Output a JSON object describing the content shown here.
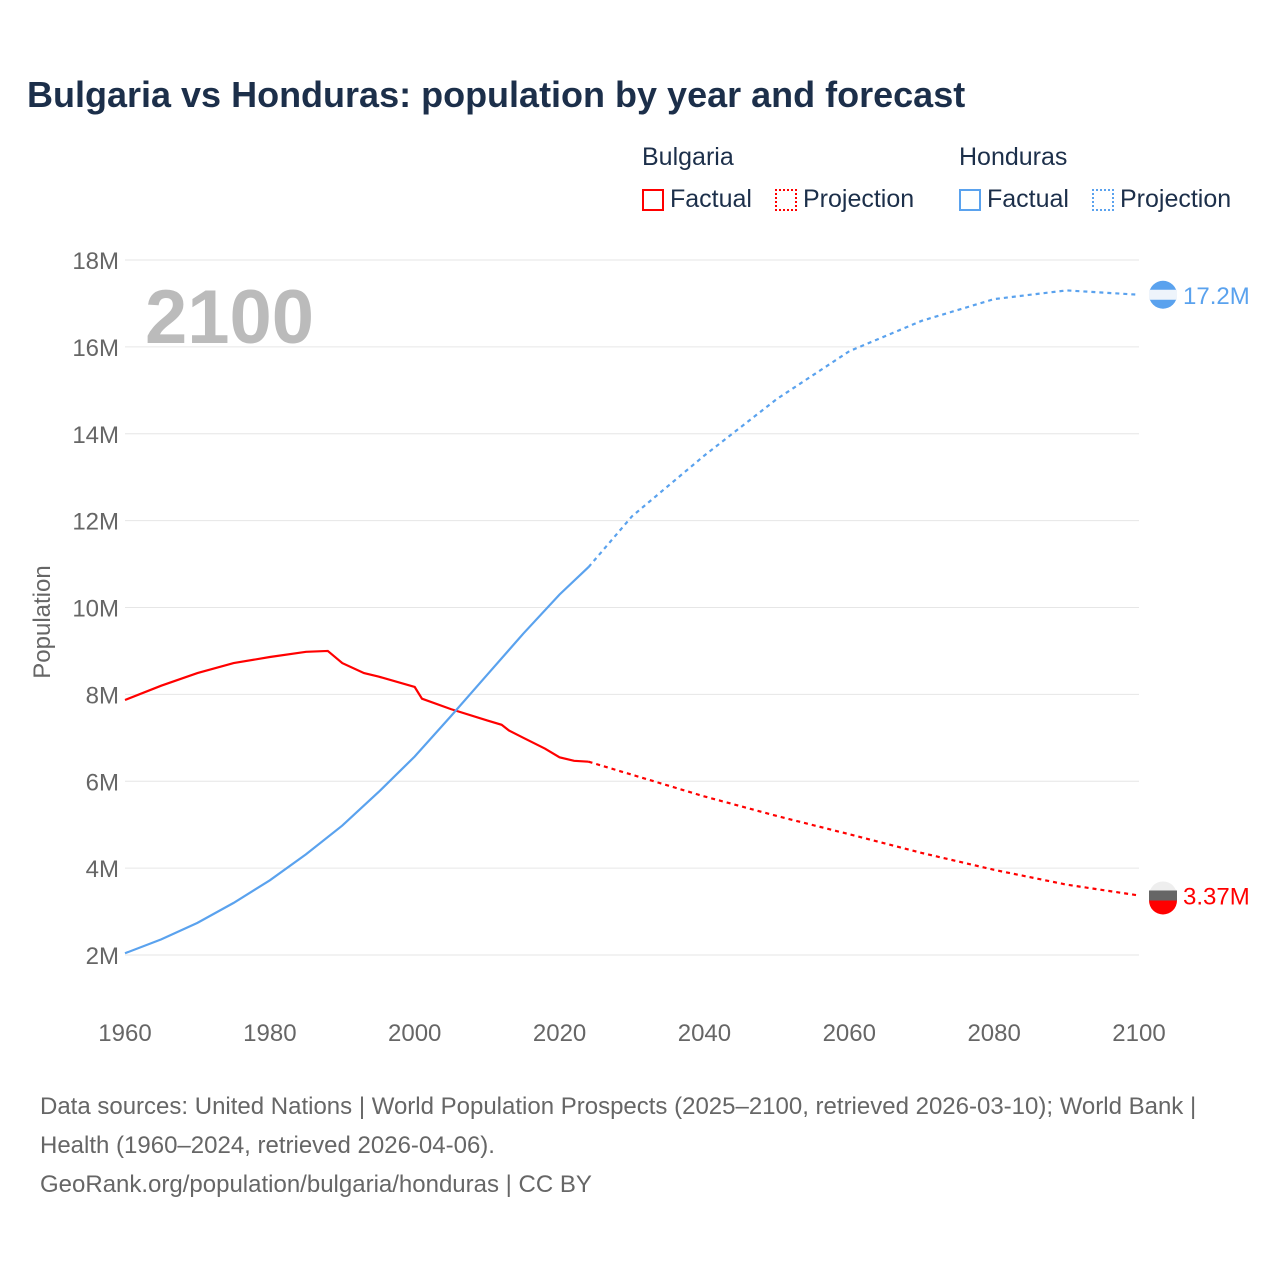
{
  "title": "Bulgaria vs Honduras: population by year and forecast",
  "legend": {
    "groups": [
      {
        "name": "Bulgaria",
        "factual": "Factual",
        "projection": "Projection",
        "color": "#ff0000"
      },
      {
        "name": "Honduras",
        "factual": "Factual",
        "projection": "Projection",
        "color": "#5aa2ee"
      }
    ]
  },
  "year_overlay": "2100",
  "footer": {
    "line1": "Data sources: United Nations | World Population Prospects (2025–2100, retrieved 2026-03-10); World Bank | Health (1960–2024, retrieved 2026-04-06).",
    "line2": "GeoRank.org/population/bulgaria/honduras | CC BY"
  },
  "chart_data": {
    "type": "line",
    "title": "Bulgaria vs Honduras: population by year and forecast",
    "xlabel": "",
    "ylabel": "Population",
    "xlim": [
      1960,
      2100
    ],
    "ylim": [
      2,
      18
    ],
    "x_ticks": [
      "1960",
      "1980",
      "2000",
      "2020",
      "2040",
      "2060",
      "2080",
      "2100"
    ],
    "y_ticks": [
      "2M",
      "4M",
      "6M",
      "8M",
      "10M",
      "12M",
      "14M",
      "16M",
      "18M"
    ],
    "grid": true,
    "series": [
      {
        "name": "Bulgaria",
        "color": "#ff0000",
        "end_label": "3.37M",
        "factual": [
          [
            1960,
            7.87
          ],
          [
            1965,
            8.2
          ],
          [
            1970,
            8.49
          ],
          [
            1975,
            8.72
          ],
          [
            1980,
            8.86
          ],
          [
            1985,
            8.98
          ],
          [
            1988,
            9.0
          ],
          [
            1990,
            8.72
          ],
          [
            1993,
            8.49
          ],
          [
            1995,
            8.41
          ],
          [
            2000,
            8.17
          ],
          [
            2001,
            7.9
          ],
          [
            2005,
            7.66
          ],
          [
            2010,
            7.4
          ],
          [
            2012,
            7.3
          ],
          [
            2013,
            7.17
          ],
          [
            2015,
            7.0
          ],
          [
            2018,
            6.75
          ],
          [
            2020,
            6.55
          ],
          [
            2022,
            6.47
          ],
          [
            2024,
            6.45
          ]
        ],
        "projection": [
          [
            2024,
            6.45
          ],
          [
            2030,
            6.15
          ],
          [
            2040,
            5.65
          ],
          [
            2050,
            5.2
          ],
          [
            2060,
            4.78
          ],
          [
            2070,
            4.35
          ],
          [
            2080,
            3.96
          ],
          [
            2090,
            3.62
          ],
          [
            2100,
            3.37
          ]
        ]
      },
      {
        "name": "Honduras",
        "color": "#5aa2ee",
        "end_label": "17.2M",
        "factual": [
          [
            1960,
            2.04
          ],
          [
            1965,
            2.36
          ],
          [
            1970,
            2.74
          ],
          [
            1975,
            3.2
          ],
          [
            1980,
            3.72
          ],
          [
            1985,
            4.32
          ],
          [
            1990,
            4.98
          ],
          [
            1995,
            5.75
          ],
          [
            2000,
            6.57
          ],
          [
            2005,
            7.5
          ],
          [
            2010,
            8.45
          ],
          [
            2015,
            9.4
          ],
          [
            2020,
            10.3
          ],
          [
            2024,
            10.93
          ]
        ],
        "projection": [
          [
            2024,
            10.93
          ],
          [
            2030,
            12.1
          ],
          [
            2040,
            13.5
          ],
          [
            2050,
            14.8
          ],
          [
            2060,
            15.9
          ],
          [
            2070,
            16.6
          ],
          [
            2080,
            17.1
          ],
          [
            2090,
            17.3
          ],
          [
            2100,
            17.2
          ]
        ]
      }
    ]
  }
}
